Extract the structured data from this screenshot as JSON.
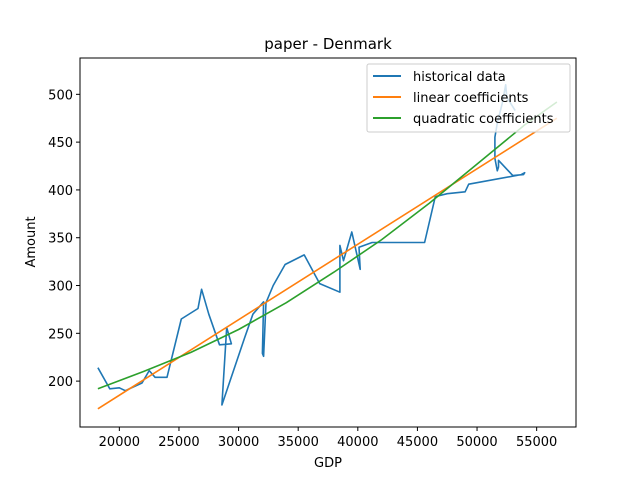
{
  "chart_data": {
    "type": "line",
    "title": "paper - Denmark",
    "xlabel": "GDP",
    "ylabel": "Amount",
    "xlim": [
      16700,
      58300
    ],
    "ylim": [
      152,
      538
    ],
    "xticks": [
      20000,
      25000,
      30000,
      35000,
      40000,
      45000,
      50000,
      55000
    ],
    "yticks": [
      200,
      250,
      300,
      350,
      400,
      450,
      500
    ],
    "grid": false,
    "legend_position": "top-right",
    "series": [
      {
        "name": "historical data",
        "color": "#1f77b4",
        "points": [
          [
            18200,
            214
          ],
          [
            19200,
            192
          ],
          [
            20000,
            193
          ],
          [
            20500,
            190
          ],
          [
            21900,
            198
          ],
          [
            22500,
            211
          ],
          [
            23000,
            204
          ],
          [
            24000,
            204
          ],
          [
            25200,
            265
          ],
          [
            26600,
            276
          ],
          [
            26900,
            296
          ],
          [
            27500,
            270
          ],
          [
            28400,
            238
          ],
          [
            29400,
            239
          ],
          [
            29000,
            256
          ],
          [
            28600,
            175
          ],
          [
            30500,
            245
          ],
          [
            31200,
            270
          ],
          [
            32100,
            283
          ],
          [
            32000,
            229
          ],
          [
            32100,
            226
          ],
          [
            32300,
            282
          ],
          [
            32900,
            300
          ],
          [
            33900,
            322
          ],
          [
            35500,
            332
          ],
          [
            36800,
            302
          ],
          [
            38500,
            293
          ],
          [
            38500,
            342
          ],
          [
            38800,
            326
          ],
          [
            39500,
            356
          ],
          [
            40200,
            317
          ],
          [
            40100,
            340
          ],
          [
            41200,
            345
          ],
          [
            45600,
            345
          ],
          [
            46500,
            393
          ],
          [
            47500,
            396
          ],
          [
            49000,
            398
          ],
          [
            49300,
            406
          ],
          [
            53700,
            416
          ],
          [
            54000,
            418
          ],
          [
            53900,
            416
          ],
          [
            53000,
            415
          ],
          [
            51800,
            431
          ],
          [
            51800,
            424
          ],
          [
            51700,
            420
          ],
          [
            51500,
            433
          ],
          [
            51500,
            455
          ],
          [
            51700,
            470
          ],
          [
            52100,
            490
          ],
          [
            52400,
            510
          ],
          [
            52500,
            497
          ],
          [
            53200,
            483
          ]
        ]
      },
      {
        "name": "linear coefficients",
        "color": "#ff7f0e",
        "points": [
          [
            18200,
            171
          ],
          [
            56700,
            475
          ]
        ]
      },
      {
        "name": "quadratic coefficients",
        "color": "#2ca02c",
        "points": [
          [
            18200,
            192
          ],
          [
            22000,
            210
          ],
          [
            26000,
            230
          ],
          [
            30000,
            254
          ],
          [
            34000,
            282
          ],
          [
            38000,
            314
          ],
          [
            42000,
            348
          ],
          [
            46000,
            386
          ],
          [
            50000,
            427
          ],
          [
            54000,
            468
          ],
          [
            56700,
            492
          ]
        ]
      }
    ]
  }
}
